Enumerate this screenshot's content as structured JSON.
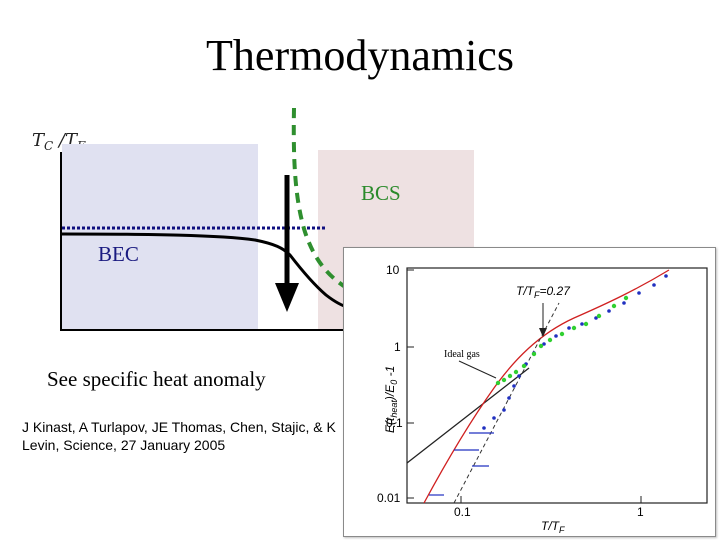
{
  "slide": {
    "title": "Thermodynamics",
    "caption": "See specific heat anomaly",
    "citation": "J Kinast, A Turlapov, JE Thomas, Chen, Stajic, & K Levin, Science,  27 January 2005"
  },
  "phase_diagram": {
    "y_axis_label": "T_C / T_F",
    "regions": [
      "BEC",
      "BCS"
    ],
    "colors": {
      "bec_region": "#e0e1f1",
      "bcs_region": "#eee1e2",
      "bcs_label": "#2a8a2a",
      "bcs_curve": "#2f8f2f",
      "bec_line": "#101080"
    }
  },
  "inset_plot": {
    "annotation": "T/T_F=0.27",
    "ideal_gas_label": "Ideal gas",
    "x_label": "T/T_F",
    "y_label": "E(t_heat)/E_0 -1",
    "x_ticks": [
      "0.1",
      "1"
    ],
    "y_ticks": [
      "10",
      "1",
      "0.1",
      "0.01"
    ]
  }
}
